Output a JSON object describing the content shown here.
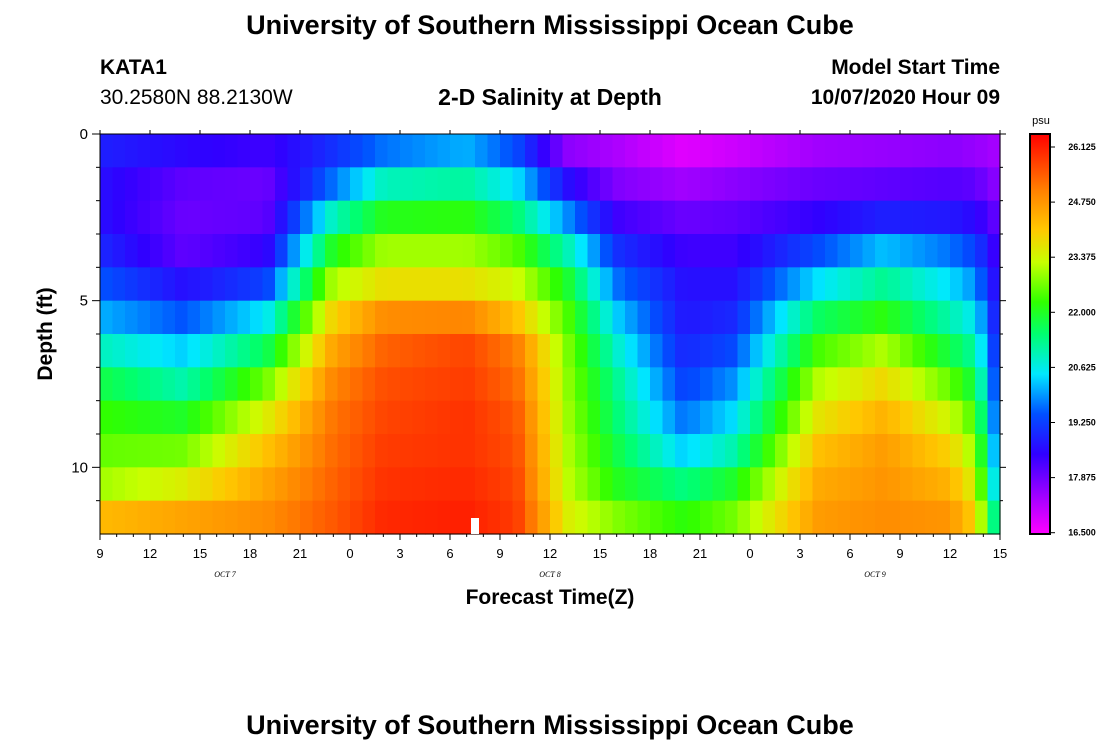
{
  "header": {
    "title_top": "University of Southern Mississippi Ocean Cube",
    "title_bottom": "University of Southern Mississippi Ocean Cube",
    "station_id": "KATA1",
    "station_coords": "30.2580N 88.2130W",
    "plot_title": "2-D Salinity at Depth",
    "model_start_label": "Model Start Time",
    "model_start_value": "10/07/2020 Hour 09"
  },
  "chart_data": {
    "type": "heatmap",
    "title": "2-D Salinity at Depth",
    "xlabel": "Forecast Time(Z)",
    "ylabel": "Depth (ft)",
    "x_range": [
      0,
      54
    ],
    "y_range": [
      0,
      12
    ],
    "x_ticks": [
      {
        "x": 0,
        "label": "9"
      },
      {
        "x": 3,
        "label": "12"
      },
      {
        "x": 6,
        "label": "15"
      },
      {
        "x": 9,
        "label": "18"
      },
      {
        "x": 12,
        "label": "21"
      },
      {
        "x": 15,
        "label": "0"
      },
      {
        "x": 18,
        "label": "3"
      },
      {
        "x": 21,
        "label": "6"
      },
      {
        "x": 24,
        "label": "9"
      },
      {
        "x": 27,
        "label": "12"
      },
      {
        "x": 30,
        "label": "15"
      },
      {
        "x": 33,
        "label": "18"
      },
      {
        "x": 36,
        "label": "21"
      },
      {
        "x": 39,
        "label": "0"
      },
      {
        "x": 42,
        "label": "3"
      },
      {
        "x": 45,
        "label": "6"
      },
      {
        "x": 48,
        "label": "9"
      },
      {
        "x": 51,
        "label": "12"
      },
      {
        "x": 54,
        "label": "15"
      }
    ],
    "day_labels": [
      {
        "x": 7.5,
        "label": "OCT 7"
      },
      {
        "x": 27,
        "label": "OCT 8"
      },
      {
        "x": 46.5,
        "label": "OCT 9"
      }
    ],
    "y_ticks": [
      {
        "y": 0,
        "label": "0"
      },
      {
        "y": 5,
        "label": "5"
      },
      {
        "y": 10,
        "label": "10"
      }
    ],
    "colorbar": {
      "unit": "psu",
      "min": 16.5,
      "max": 26.125,
      "labels": [
        "26.125",
        "24.750",
        "23.375",
        "22.000",
        "20.625",
        "19.250",
        "17.875",
        "16.500"
      ]
    },
    "now_marker_x": 22.5,
    "rows": 12,
    "keyframes": [
      {
        "t": 0,
        "v": [
          18.8,
          18.6,
          18.6,
          18.9,
          19.4,
          20.0,
          20.8,
          21.6,
          22.1,
          22.4,
          22.8,
          24.0
        ]
      },
      {
        "t": 5,
        "v": [
          18.5,
          18.0,
          17.9,
          18.0,
          18.6,
          19.4,
          20.2,
          20.9,
          21.8,
          22.5,
          23.3,
          24.3
        ]
      },
      {
        "t": 10,
        "v": [
          18.3,
          17.9,
          18.0,
          18.4,
          19.2,
          20.4,
          21.5,
          22.5,
          23.3,
          23.9,
          24.3,
          24.6
        ]
      },
      {
        "t": 14,
        "v": [
          19.0,
          19.6,
          20.8,
          21.9,
          22.9,
          23.7,
          24.3,
          24.7,
          24.9,
          25.0,
          25.1,
          25.2
        ]
      },
      {
        "t": 17,
        "v": [
          19.6,
          20.8,
          21.9,
          22.8,
          23.5,
          24.6,
          25.1,
          25.3,
          25.4,
          25.5,
          25.6,
          25.7
        ]
      },
      {
        "t": 22,
        "v": [
          20.0,
          21.0,
          22.0,
          22.8,
          23.5,
          24.7,
          25.4,
          25.5,
          25.6,
          25.6,
          25.7,
          25.8
        ]
      },
      {
        "t": 25,
        "v": [
          19.3,
          20.3,
          21.3,
          22.3,
          23.1,
          23.9,
          24.8,
          25.0,
          25.2,
          25.3,
          25.4,
          25.5
        ]
      },
      {
        "t": 28,
        "v": [
          17.6,
          18.6,
          19.8,
          20.9,
          21.8,
          22.3,
          22.6,
          22.7,
          22.8,
          22.9,
          23.0,
          23.3
        ]
      },
      {
        "t": 31,
        "v": [
          17.3,
          17.7,
          18.3,
          19.0,
          19.6,
          20.2,
          20.7,
          21.1,
          21.3,
          21.6,
          21.9,
          22.6
        ]
      },
      {
        "t": 35,
        "v": [
          16.8,
          17.4,
          17.9,
          18.3,
          18.6,
          18.7,
          18.9,
          19.2,
          19.6,
          20.2,
          21.2,
          22.0
        ]
      },
      {
        "t": 38,
        "v": [
          17.0,
          17.6,
          18.0,
          18.3,
          18.6,
          18.9,
          19.3,
          19.8,
          20.3,
          20.9,
          21.8,
          22.5
        ]
      },
      {
        "t": 43,
        "v": [
          17.4,
          17.9,
          18.4,
          19.3,
          20.3,
          21.4,
          22.2,
          22.9,
          23.4,
          23.9,
          24.2,
          24.4
        ]
      },
      {
        "t": 47,
        "v": [
          17.5,
          18.0,
          18.8,
          20.1,
          21.1,
          22.0,
          22.9,
          23.6,
          24.1,
          24.4,
          24.5,
          24.6
        ]
      },
      {
        "t": 51,
        "v": [
          17.6,
          18.1,
          18.7,
          19.6,
          20.3,
          20.9,
          21.6,
          22.4,
          23.1,
          23.7,
          24.1,
          24.5
        ]
      },
      {
        "t": 52.5,
        "v": [
          17.5,
          18.0,
          18.5,
          19.2,
          19.8,
          20.4,
          21.0,
          21.6,
          22.2,
          22.7,
          23.2,
          23.7
        ]
      },
      {
        "t": 53.5,
        "v": [
          17.4,
          17.7,
          18.1,
          18.5,
          18.8,
          19.1,
          19.4,
          19.7,
          20.0,
          20.4,
          20.8,
          21.5
        ]
      },
      {
        "t": 54,
        "v": [
          17.3,
          17.5,
          17.8,
          18.0,
          18.2,
          18.4,
          18.6,
          18.8,
          19.0,
          19.3,
          19.7,
          20.3
        ]
      }
    ]
  }
}
